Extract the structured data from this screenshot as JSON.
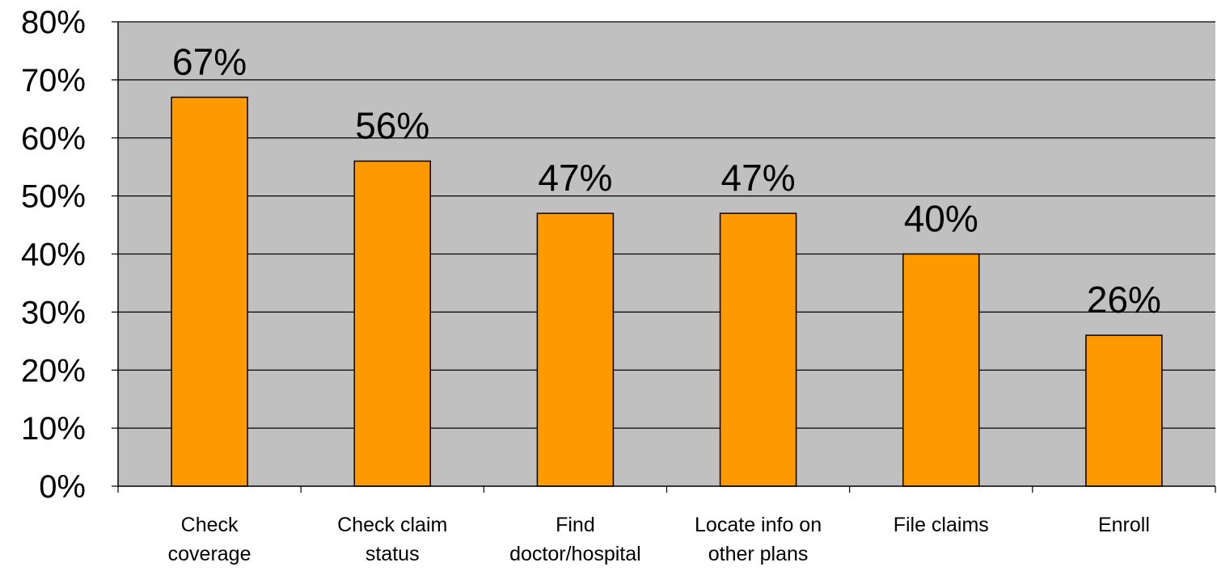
{
  "chart_data": {
    "type": "bar",
    "categories": [
      [
        "Check",
        "coverage"
      ],
      [
        "Check claim",
        "status"
      ],
      [
        "Find",
        "doctor/hospital"
      ],
      [
        "Locate info on",
        "other plans"
      ],
      [
        "File claims"
      ],
      [
        "Enroll"
      ]
    ],
    "values": [
      67,
      56,
      47,
      47,
      40,
      26
    ],
    "data_labels": [
      "67%",
      "56%",
      "47%",
      "47%",
      "40%",
      "26%"
    ],
    "ylim": [
      0,
      80
    ],
    "yticks": [
      "0%",
      "10%",
      "20%",
      "30%",
      "40%",
      "50%",
      "60%",
      "70%",
      "80%"
    ],
    "grid": true,
    "legend": "none",
    "colors": {
      "bar": "#FF9900",
      "plot_bg": "#C0C0C0",
      "grid": "#000000"
    }
  }
}
